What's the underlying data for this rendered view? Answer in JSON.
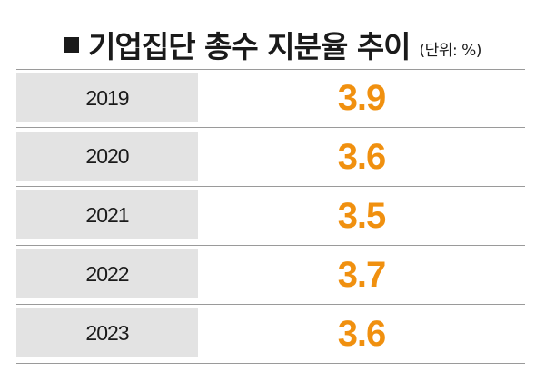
{
  "title": "기업집단 총수 지분율 추이",
  "unit": "(단위: %)",
  "colors": {
    "value_text": "#f0900f",
    "year_cell_bg": "#e3e3e3",
    "text": "#1a1a1a",
    "divider": "#9a9a9a"
  },
  "chart_data": {
    "type": "table",
    "title": "기업집단 총수 지분율 추이",
    "unit": "(단위: %)",
    "columns": [
      "year",
      "value"
    ],
    "rows": [
      {
        "year": "2019",
        "value": "3.9"
      },
      {
        "year": "2020",
        "value": "3.6"
      },
      {
        "year": "2021",
        "value": "3.5"
      },
      {
        "year": "2022",
        "value": "3.7"
      },
      {
        "year": "2023",
        "value": "3.6"
      }
    ]
  }
}
